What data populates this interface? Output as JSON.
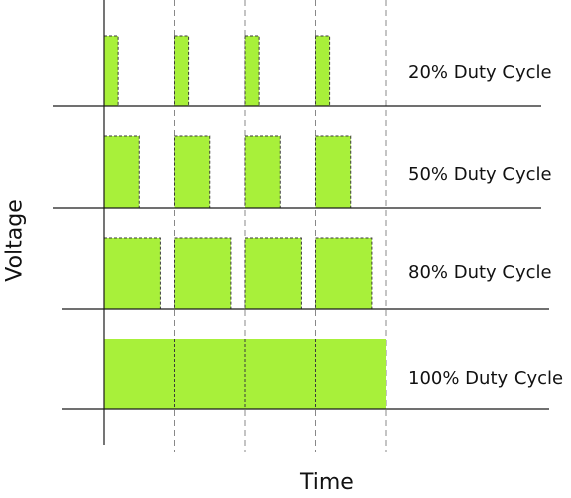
{
  "axis_labels": {
    "y": "Voltage",
    "x": "Time"
  },
  "rows": [
    {
      "label": "20% Duty Cycle",
      "duty": 0.2
    },
    {
      "label": "50% Duty Cycle",
      "duty": 0.5
    },
    {
      "label": "80% Duty Cycle",
      "duty": 0.8
    },
    {
      "label": "100% Duty Cycle",
      "duty": 1.0
    }
  ],
  "periods": 4,
  "colors": {
    "pulse": "#a8f03a",
    "line": "#1a1a1a",
    "guide": "#888888"
  }
}
